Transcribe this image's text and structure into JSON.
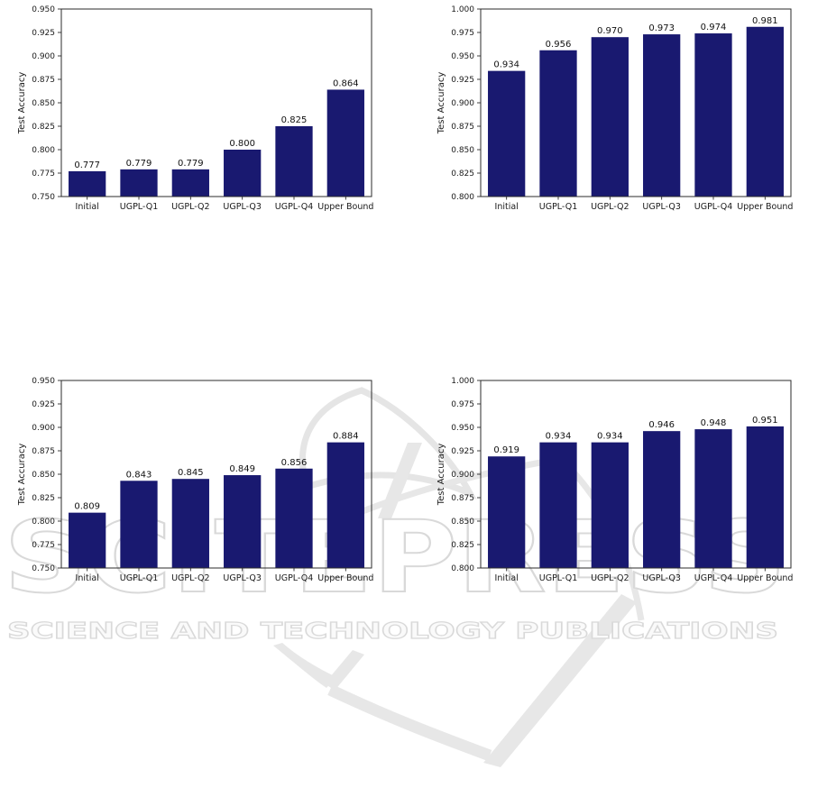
{
  "watermark": {
    "brand": "SCITEPRESS",
    "tagline": "SCIENCE AND TECHNOLOGY PUBLICATIONS",
    "outline_color": "#d9d9d9",
    "shape_color": "#e7e7e7"
  },
  "chart_data": [
    {
      "type": "bar",
      "position": "top-left",
      "title": "",
      "xlabel": "",
      "ylabel": "Test Accuracy",
      "categories": [
        "Initial",
        "UGPL-Q1",
        "UGPL-Q2",
        "UGPL-Q3",
        "UGPL-Q4",
        "Upper Bound"
      ],
      "values": [
        0.777,
        0.779,
        0.779,
        0.8,
        0.825,
        0.864
      ],
      "ylim": [
        0.75,
        0.95
      ],
      "ytick_step": 0.025,
      "bar_color": "#191970",
      "grid": false,
      "legend": null
    },
    {
      "type": "bar",
      "position": "top-right",
      "title": "",
      "xlabel": "",
      "ylabel": "Test Accuracy",
      "categories": [
        "Initial",
        "UGPL-Q1",
        "UGPL-Q2",
        "UGPL-Q3",
        "UGPL-Q4",
        "Upper Bound"
      ],
      "values": [
        0.934,
        0.956,
        0.97,
        0.973,
        0.974,
        0.981
      ],
      "ylim": [
        0.8,
        1.0
      ],
      "ytick_step": 0.025,
      "bar_color": "#191970",
      "grid": false,
      "legend": null
    },
    {
      "type": "bar",
      "position": "bottom-left",
      "title": "",
      "xlabel": "",
      "ylabel": "Test Accuracy",
      "categories": [
        "Initial",
        "UGPL-Q1",
        "UGPL-Q2",
        "UGPL-Q3",
        "UGPL-Q4",
        "Upper Bound"
      ],
      "values": [
        0.809,
        0.843,
        0.845,
        0.849,
        0.856,
        0.884
      ],
      "ylim": [
        0.75,
        0.95
      ],
      "ytick_step": 0.025,
      "bar_color": "#191970",
      "grid": false,
      "legend": null
    },
    {
      "type": "bar",
      "position": "bottom-right",
      "title": "",
      "xlabel": "",
      "ylabel": "Test Accuracy",
      "categories": [
        "Initial",
        "UGPL-Q1",
        "UGPL-Q2",
        "UGPL-Q3",
        "UGPL-Q4",
        "Upper Bound"
      ],
      "values": [
        0.919,
        0.934,
        0.934,
        0.946,
        0.948,
        0.951
      ],
      "ylim": [
        0.8,
        1.0
      ],
      "ytick_step": 0.025,
      "bar_color": "#191970",
      "grid": false,
      "legend": null
    }
  ]
}
